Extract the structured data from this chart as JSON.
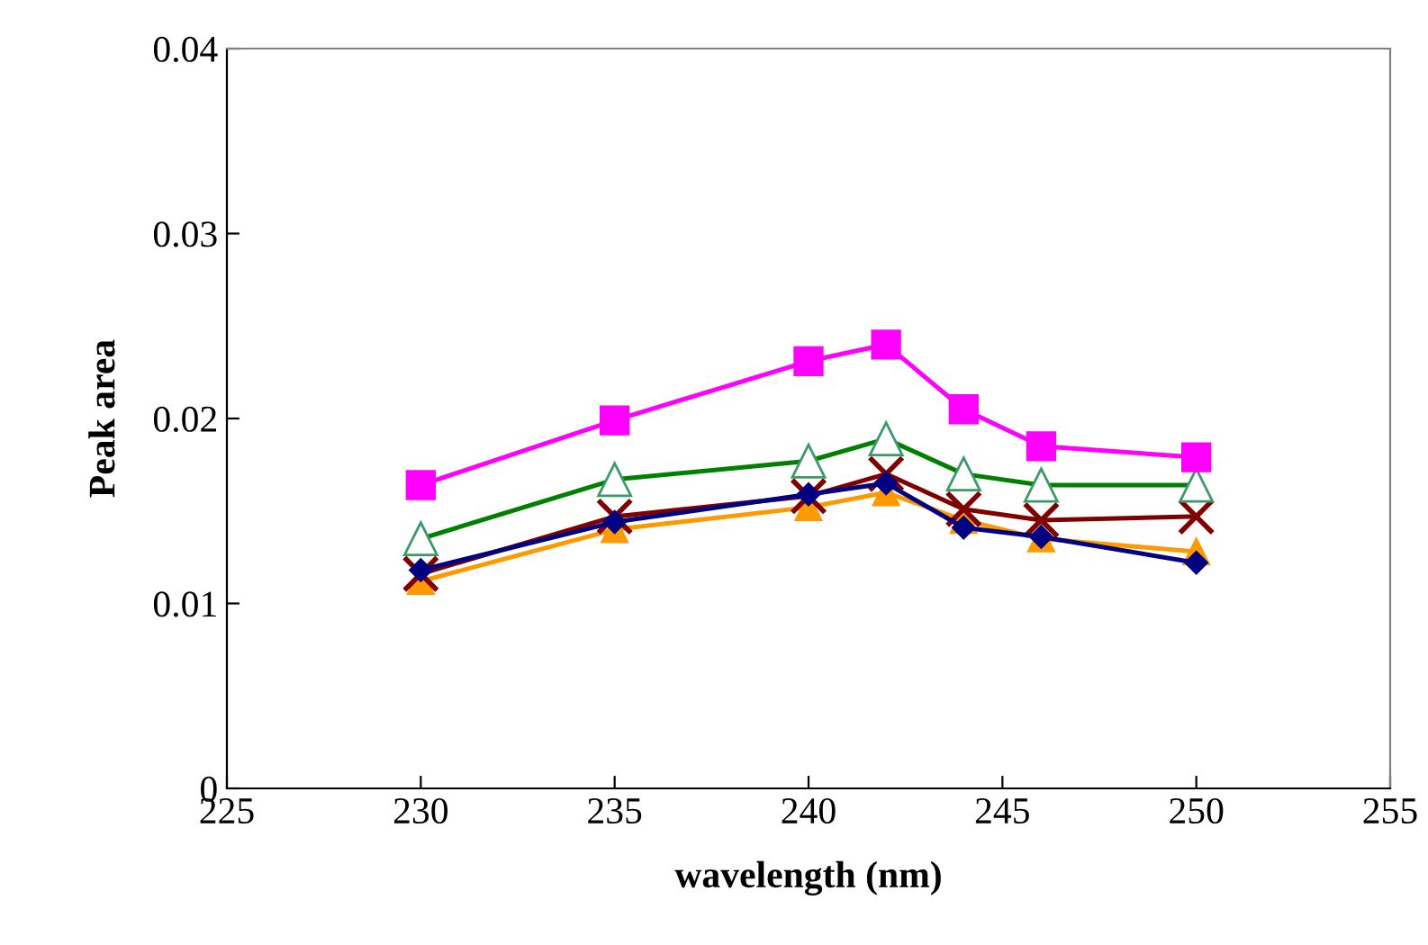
{
  "chart_data": {
    "type": "line",
    "xlabel": "wavelength (nm)",
    "ylabel": "Peak area",
    "x": [
      230,
      235,
      240,
      242,
      244,
      246,
      250
    ],
    "series": [
      {
        "color": "#000080",
        "marker": "diamond",
        "values": [
          0.0118,
          0.0144,
          0.0159,
          0.0165,
          0.0141,
          0.0136,
          0.0122
        ]
      },
      {
        "color": "#ff9900",
        "marker": "triangle",
        "values": [
          0.0112,
          0.014,
          0.0152,
          0.016,
          0.0145,
          0.0135,
          0.0128
        ]
      },
      {
        "color": "#800000",
        "marker": "cross",
        "values": [
          0.0116,
          0.0147,
          0.0158,
          0.017,
          0.0151,
          0.0145,
          0.0147
        ]
      },
      {
        "color": "#008000",
        "marker": "triangle_open",
        "values": [
          0.0135,
          0.0167,
          0.0177,
          0.0189,
          0.017,
          0.0164,
          0.0164
        ]
      },
      {
        "color": "#ff00ff",
        "marker": "square",
        "values": [
          0.0164,
          0.0199,
          0.0231,
          0.024,
          0.0205,
          0.0185,
          0.0179
        ]
      }
    ],
    "xlim": [
      225,
      255
    ],
    "xticks": [
      225,
      230,
      235,
      240,
      245,
      250,
      255
    ],
    "ylim": [
      0,
      0.04
    ],
    "yticks": [
      {
        "value": 0,
        "label": "0"
      },
      {
        "value": 0.01,
        "label": "0.01"
      },
      {
        "value": 0.02,
        "label": "0.02"
      },
      {
        "value": 0.03,
        "label": "0.03"
      },
      {
        "value": 0.04,
        "label": "0.04"
      }
    ],
    "grid": false,
    "legend": false
  }
}
